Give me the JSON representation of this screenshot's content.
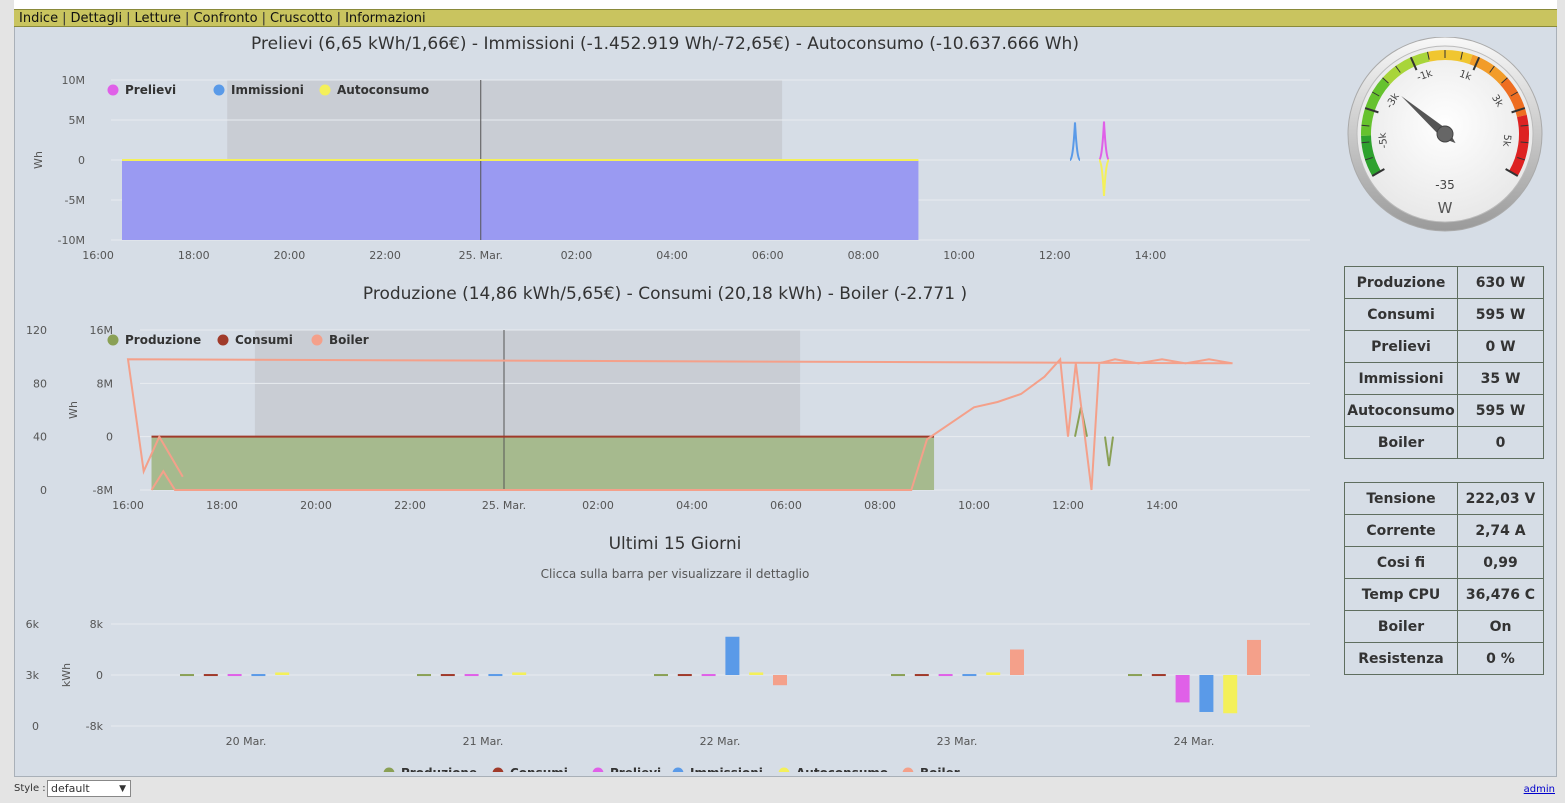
{
  "menu": [
    "Indice",
    "Dettagli",
    "Letture",
    "Confronto",
    "Cruscotto",
    "Informazioni"
  ],
  "chart_data": [
    {
      "type": "area",
      "title": "Prelievi (6,65 kWh/1,66€) - Immissioni (-1.452.919 Wh/-72,65€) - Autoconsumo (-10.637.666 Wh)",
      "ylabel": "Wh",
      "yticks": [
        "10M",
        "5M",
        "0",
        "-5M",
        "-10M"
      ],
      "ylim": [
        -10000000,
        10000000
      ],
      "xticks": [
        "18:00",
        "20:00",
        "22:00",
        "25. Mar.",
        "02:00",
        "04:00",
        "06:00",
        "08:00",
        "10:00",
        "12:00",
        "14:00",
        "16:00"
      ],
      "x": [
        "16:30",
        "18:00",
        "20:00",
        "22:00",
        "25. Mar.",
        "02:00",
        "04:00",
        "06:00",
        "08:00",
        "10:00",
        "11:58",
        "12:00",
        "12:35",
        "12:40",
        "14:00",
        "16:00",
        "17:10"
      ],
      "series": [
        {
          "name": "Prelievi",
          "color": "#e060e8",
          "values": [
            0,
            0,
            0,
            0,
            0,
            0,
            0,
            0,
            0,
            0,
            0,
            0,
            0,
            4800000,
            0,
            0,
            0
          ]
        },
        {
          "name": "Immissioni",
          "color": "#5a9ae8",
          "values": [
            -10000000,
            -10000000,
            -10000000,
            -10000000,
            -10000000,
            -10000000,
            -10000000,
            -10000000,
            -10000000,
            -10000000,
            -10000000,
            4700000,
            -10000000,
            -10000000,
            -10000000,
            -10000000,
            -10000000
          ]
        },
        {
          "name": "Autoconsumo",
          "color": "#f4f05a",
          "values": [
            0,
            0,
            0,
            0,
            0,
            0,
            0,
            0,
            0,
            0,
            0,
            0,
            0,
            -4500000,
            0,
            0,
            0
          ]
        }
      ],
      "legend_position": "top-left",
      "grid": true
    },
    {
      "type": "line",
      "title": "Produzione (14,86 kWh/5,65€) - Consumi (20,18 kWh) - Boiler (-2.771 )",
      "ylabel": "Wh",
      "yticks_left": [
        "120",
        "80",
        "40",
        "0"
      ],
      "yticks_right": [
        "16M",
        "8M",
        "0",
        "-8M"
      ],
      "ylim": [
        0,
        120
      ],
      "xticks": [
        "18:00",
        "20:00",
        "22:00",
        "25. Mar.",
        "02:00",
        "04:00",
        "06:00",
        "08:00",
        "10:00",
        "12:00",
        "14:00",
        "16:00"
      ],
      "series": [
        {
          "name": "Produzione",
          "color": "#8aa055",
          "values": [
            40,
            40,
            40,
            40,
            40,
            40,
            40,
            40,
            40,
            40,
            40,
            62,
            40,
            18,
            40,
            40,
            40,
            40,
            40
          ]
        },
        {
          "name": "Consumi",
          "color": "#a03a2a",
          "values": [
            40,
            40,
            40,
            40,
            40,
            40,
            40,
            40,
            40,
            40,
            40,
            40,
            40,
            40,
            40,
            40,
            40,
            40,
            40
          ]
        },
        {
          "name": "Boiler",
          "color": "#f4a08a",
          "x": [
            "16:30",
            "16:45",
            "17:00",
            "18:00",
            "20:00",
            "22:00",
            "25. Mar.",
            "02:00",
            "04:00",
            "06:00",
            "08:00",
            "08:40",
            "09:00",
            "09:30",
            "10:00",
            "10:30",
            "11:00",
            "11:30",
            "11:50",
            "12:00",
            "12:10",
            "12:30",
            "12:40",
            "13:00",
            "13:30",
            "14:00",
            "14:30",
            "15:00",
            "15:30",
            "16:00",
            "16:20",
            "16:40",
            "17:10"
          ],
          "values": [
            0,
            14,
            0,
            0,
            0,
            0,
            0,
            0,
            0,
            0,
            0,
            0,
            38,
            50,
            62,
            66,
            72,
            85,
            98,
            40,
            95,
            0,
            95,
            98,
            95,
            98,
            95,
            98,
            95,
            98,
            14,
            40,
            10
          ]
        }
      ],
      "legend_position": "top-left",
      "grid": true
    },
    {
      "type": "bar",
      "title": "Ultimi 15 Giorni",
      "subtitle": "Clicca sulla barra per visualizzare il dettaglio",
      "ylabel": "kWh",
      "yticks_left": [
        "6k",
        "3k",
        "0"
      ],
      "yticks_right": [
        "8k",
        "0",
        "-8k"
      ],
      "ylim": [
        -8000,
        8000
      ],
      "categories": [
        "20 Mar.",
        "21 Mar.",
        "22 Mar.",
        "23 Mar.",
        "24 Mar."
      ],
      "series": [
        {
          "name": "Produzione",
          "color": "#8aa055",
          "values": [
            150,
            150,
            150,
            150,
            150
          ]
        },
        {
          "name": "Consumi",
          "color": "#a03a2a",
          "values": [
            150,
            150,
            150,
            150,
            150
          ]
        },
        {
          "name": "Prelievi",
          "color": "#e060e8",
          "values": [
            150,
            150,
            150,
            150,
            -4300
          ]
        },
        {
          "name": "Immissioni",
          "color": "#5a9ae8",
          "values": [
            150,
            150,
            6000,
            150,
            -5800
          ]
        },
        {
          "name": "Autoconsumo",
          "color": "#f4f05a",
          "values": [
            400,
            400,
            400,
            400,
            -6000
          ]
        },
        {
          "name": "Boiler",
          "color": "#f4a08a",
          "values": [
            0,
            0,
            -1600,
            4000,
            5500
          ]
        }
      ],
      "legend_position": "bottom",
      "grid": true
    }
  ],
  "gauge": {
    "value": "-35",
    "unit": "W",
    "ticks": [
      "-5k",
      "-3k",
      "-1k",
      "1k",
      "3k",
      "5k"
    ]
  },
  "stats1": [
    {
      "label": "Produzione",
      "value": "630 W"
    },
    {
      "label": "Consumi",
      "value": "595 W"
    },
    {
      "label": "Prelievi",
      "value": "0 W"
    },
    {
      "label": "Immissioni",
      "value": "35 W"
    },
    {
      "label": "Autoconsumo",
      "value": "595 W"
    },
    {
      "label": "Boiler",
      "value": "0"
    }
  ],
  "stats2": [
    {
      "label": "Tensione",
      "value": "222,03 V"
    },
    {
      "label": "Corrente",
      "value": "2,74 A"
    },
    {
      "label": "Cosi fi",
      "value": "0,99"
    },
    {
      "label": "Temp CPU",
      "value": "36,476 C"
    },
    {
      "label": "Boiler",
      "value": "On"
    },
    {
      "label": "Resistenza",
      "value": "0 %"
    }
  ],
  "footer": {
    "style_label": "Style :",
    "style_value": "default",
    "admin": "admin"
  }
}
